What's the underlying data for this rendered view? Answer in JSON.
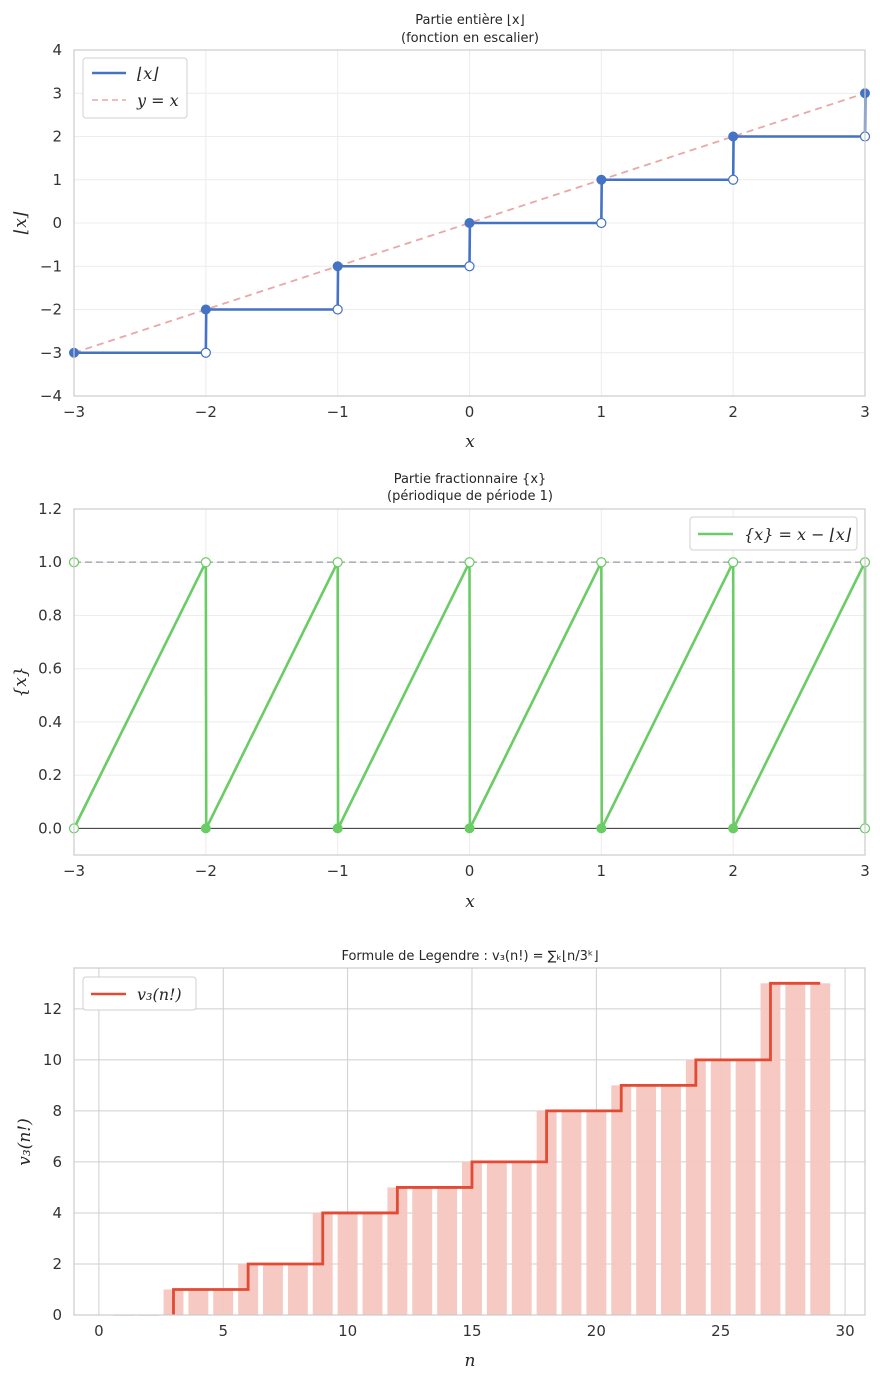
{
  "chart_data": [
    {
      "type": "line",
      "title": "Partie entière ⌊x⌋",
      "subtitle": "(fonction en escalier)",
      "xlabel": "x",
      "ylabel": "⌊x⌋",
      "xlim": [
        -3,
        3
      ],
      "ylim": [
        -4,
        4
      ],
      "xticks": [
        "−3",
        "−2",
        "−1",
        "0",
        "1",
        "2",
        "3"
      ],
      "yticks": [
        "−4",
        "−3",
        "−2",
        "−1",
        "0",
        "1",
        "2",
        "3",
        "4"
      ],
      "legend": [
        "⌊x⌋",
        "y = x"
      ],
      "legend_position": "top-left",
      "series": [
        {
          "name": "⌊x⌋",
          "style": "step",
          "steps": [
            {
              "from": -3,
              "to": -2,
              "value": -3
            },
            {
              "from": -2,
              "to": -1,
              "value": -2
            },
            {
              "from": -1,
              "to": 0,
              "value": -1
            },
            {
              "from": 0,
              "to": 1,
              "value": 0
            },
            {
              "from": 1,
              "to": 2,
              "value": 1
            },
            {
              "from": 2,
              "to": 3,
              "value": 2
            },
            {
              "from": 3,
              "to": 3,
              "value": 3
            }
          ]
        },
        {
          "name": "y = x",
          "style": "dashed",
          "x": [
            -3,
            3
          ],
          "y": [
            -3,
            3
          ]
        }
      ],
      "colors": {
        "floor": "#4472c4",
        "identity": "#e8a8a8"
      }
    },
    {
      "type": "line",
      "title": "Partie fractionnaire {x}",
      "subtitle": "(périodique de période 1)",
      "xlabel": "x",
      "ylabel": "{x}",
      "xlim": [
        -3,
        3
      ],
      "ylim": [
        -0.1,
        1.2
      ],
      "xticks": [
        "−3",
        "−2",
        "−1",
        "0",
        "1",
        "2",
        "3"
      ],
      "yticks": [
        "0.0",
        "0.2",
        "0.4",
        "0.6",
        "0.8",
        "1.0",
        "1.2"
      ],
      "legend": [
        "{x} = x − ⌊x⌋"
      ],
      "legend_position": "top-right",
      "series": [
        {
          "name": "{x} = x − ⌊x⌋",
          "style": "sawtooth",
          "period": 1,
          "integers": [
            -3,
            -2,
            -1,
            0,
            1,
            2,
            3
          ]
        }
      ],
      "reference_lines": [
        {
          "y": 1.0,
          "style": "dashed"
        },
        {
          "y": 0.0,
          "style": "solid"
        }
      ],
      "colors": {
        "frac": "#6acc64",
        "ref": "#b0b0b8"
      }
    },
    {
      "type": "bar",
      "title": "Formule de Legendre : v₃(n!) = ∑ₖ⌊n/3ᵏ⌋",
      "xlabel": "n",
      "ylabel": "v₃(n!)",
      "xlim": [
        -1,
        30.8
      ],
      "ylim": [
        0,
        13.6
      ],
      "xticks": [
        "0",
        "5",
        "10",
        "15",
        "20",
        "25",
        "30"
      ],
      "yticks": [
        "0",
        "2",
        "4",
        "6",
        "8",
        "10",
        "12"
      ],
      "legend": [
        "v₃(n!)"
      ],
      "legend_position": "top-left",
      "x": [
        1,
        2,
        3,
        4,
        5,
        6,
        7,
        8,
        9,
        10,
        11,
        12,
        13,
        14,
        15,
        16,
        17,
        18,
        19,
        20,
        21,
        22,
        23,
        24,
        25,
        26,
        27,
        28,
        29
      ],
      "values": [
        0,
        0,
        1,
        1,
        1,
        2,
        2,
        2,
        4,
        4,
        4,
        5,
        5,
        5,
        6,
        6,
        6,
        8,
        8,
        8,
        9,
        9,
        9,
        10,
        10,
        10,
        13,
        13,
        13
      ],
      "colors": {
        "bars": "#f6c6c0",
        "step": "#e24a33"
      }
    }
  ]
}
